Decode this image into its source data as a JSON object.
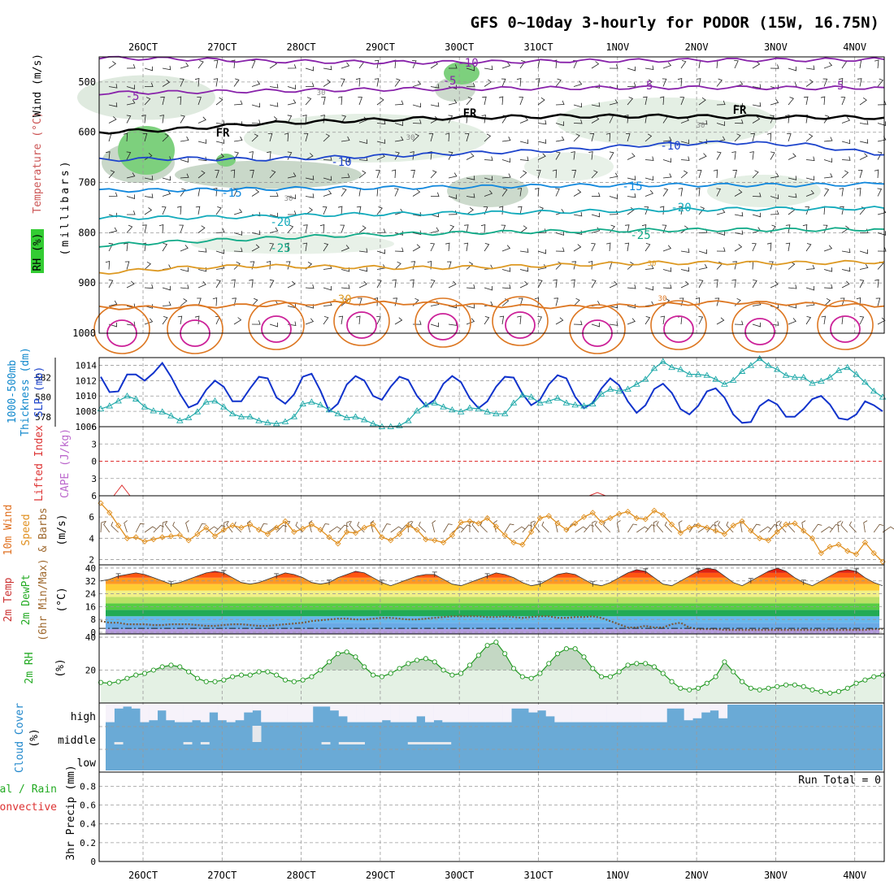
{
  "header": {
    "title": "GFS 0~10day 3-hourly for PODOR (15W, 16.75N)"
  },
  "colors": {
    "slp": "#1133cc",
    "thickness": "#22aaaa",
    "wind_speed": "#e09020",
    "rh_line": "#229922",
    "rh_fill": "#e4f1e4",
    "rh_fill_dark": "#c4d8c4",
    "cloud": "#6aaad6",
    "cloud_bg": "#f6f2fa",
    "lifted_zero": "#e03030"
  },
  "chart_data": [
    {
      "type": "line",
      "name": "time-axis",
      "x_tick_labels": [
        "26OCT",
        "27OCT",
        "28OCT",
        "29OCT",
        "30OCT",
        "31OCT",
        "1NOV",
        "2NOV",
        "3NOV",
        "4NOV"
      ],
      "x_range_days": [
        0,
        10
      ]
    },
    {
      "type": "line",
      "name": "upper-air",
      "ylabels": [
        "RH (%)",
        "Temperature (°C)",
        "Wind (m/s)",
        "(millibars)"
      ],
      "y_ticks": [
        500,
        600,
        700,
        800,
        900,
        1000
      ],
      "ylim": [
        450,
        1000
      ],
      "isotherm_labels": [
        "-10",
        "-5",
        "-5",
        "FR",
        "FR",
        "FR",
        "-5",
        "-5",
        "-10",
        "-10",
        "-15",
        "-15",
        "-20",
        "-20",
        "-25",
        "-25",
        "-30",
        "30",
        "30",
        "30",
        "30",
        "30",
        "30"
      ],
      "isotherms": [
        {
          "value": -10,
          "color": "#8822aa",
          "p": [
            452,
            454,
            458,
            460,
            461,
            460,
            458,
            457,
            456,
            456,
            455
          ]
        },
        {
          "value": -5,
          "color": "#8822aa",
          "p": [
            522,
            520,
            518,
            516,
            514,
            513,
            512,
            511,
            511,
            512,
            511
          ]
        },
        {
          "value": 0,
          "color": "#000000",
          "p": [
            600,
            594,
            583,
            578,
            573,
            570,
            568,
            568,
            569,
            570,
            571
          ]
        },
        {
          "value": 5,
          "color": "#1d44cc",
          "p": [
            655,
            652,
            654,
            650,
            645,
            640,
            635,
            625,
            620,
            625,
            645
          ]
        },
        {
          "value": 10,
          "color": "#1188dd",
          "p": [
            716,
            715,
            713,
            711,
            710,
            708,
            706,
            705,
            705,
            705,
            703
          ]
        },
        {
          "value": 15,
          "color": "#11aabb",
          "p": [
            770,
            770,
            768,
            764,
            762,
            760,
            758,
            755,
            753,
            752,
            751
          ]
        },
        {
          "value": 20,
          "color": "#11aa88",
          "p": [
            825,
            818,
            812,
            806,
            802,
            799,
            797,
            795,
            794,
            794,
            793
          ]
        },
        {
          "value": 25,
          "color": "#dd9922",
          "p": [
            880,
            870,
            866,
            868,
            870,
            868,
            864,
            860,
            860,
            860,
            858
          ]
        },
        {
          "value": 30,
          "color": "#dd7722",
          "p": [
            950,
            948,
            944,
            940,
            940,
            945,
            948,
            944,
            938,
            942,
            946
          ]
        }
      ]
    },
    {
      "type": "line",
      "name": "thickness-slp",
      "ylabels": [
        "1000-500mb",
        "Thickness (dm)",
        "SLP (mb)"
      ],
      "y_ticks_left": [
        578,
        580,
        582
      ],
      "y_ticks_right": [
        1006,
        1008,
        1010,
        1012,
        1014
      ],
      "ylim_slp": [
        1006,
        1015
      ],
      "ylim_thickness": [
        577,
        584
      ],
      "series": [
        {
          "name": "SLP",
          "values": [
            1012.5,
            1010.5,
            1010.6,
            1012.8,
            1012.8,
            1012.0,
            1013.0,
            1014.3,
            1012.5,
            1010.3,
            1008.5,
            1009.0,
            1010.8,
            1012.0,
            1011.2,
            1009.3,
            1009.3,
            1011.0,
            1012.5,
            1012.3,
            1009.8,
            1009.0,
            1010.2,
            1012.5,
            1012.9,
            1010.7,
            1008.0,
            1009.0,
            1011.5,
            1012.6,
            1012.0,
            1010.0,
            1009.5,
            1011.2,
            1012.5,
            1012.1,
            1010.0,
            1008.7,
            1009.5,
            1011.6,
            1012.6,
            1011.8,
            1009.7,
            1008.4,
            1009.3,
            1011.2,
            1012.5,
            1012.4,
            1010.3,
            1008.8,
            1009.5,
            1011.5,
            1012.7,
            1012.3,
            1009.9,
            1008.4,
            1009.1,
            1011.0,
            1012.3,
            1011.4,
            1009.3,
            1007.8,
            1008.8,
            1010.9,
            1011.6,
            1010.4,
            1008.3,
            1007.6,
            1008.7,
            1010.6,
            1011.0,
            1009.8,
            1007.6,
            1006.5,
            1006.6,
            1008.7,
            1009.5,
            1008.9,
            1007.3,
            1007.3,
            1008.3,
            1009.6,
            1010.0,
            1008.9,
            1007.1,
            1006.9,
            1007.6,
            1009.3,
            1008.8,
            1008.0
          ]
        },
        {
          "name": "Thickness",
          "values": [
            578.8,
            579.1,
            579.6,
            580.1,
            579.8,
            579.0,
            578.6,
            578.5,
            578.1,
            577.6,
            577.9,
            578.5,
            579.5,
            579.6,
            579.0,
            578.3,
            578.0,
            578.0,
            577.6,
            577.4,
            577.3,
            577.5,
            578.0,
            579.3,
            579.5,
            579.2,
            578.7,
            578.3,
            577.9,
            578.0,
            577.7,
            577.3,
            577.0,
            577.0,
            577.1,
            577.6,
            578.6,
            579.2,
            579.4,
            579.0,
            578.7,
            578.5,
            578.9,
            578.8,
            578.5,
            578.3,
            578.3,
            579.4,
            580.2,
            580.0,
            579.4,
            579.6,
            579.9,
            579.4,
            579.2,
            579.1,
            579.3,
            580.3,
            580.8,
            580.6,
            580.8,
            581.3,
            581.8,
            582.9,
            583.6,
            583.0,
            582.8,
            582.3,
            582.3,
            582.2,
            581.8,
            581.3,
            581.7,
            582.6,
            583.2,
            583.9,
            583.2,
            582.8,
            582.2,
            582.0,
            582.0,
            581.4,
            581.6,
            582.0,
            582.7,
            583.0,
            582.3,
            581.5,
            580.6,
            580.0
          ]
        }
      ]
    },
    {
      "type": "line",
      "name": "lifted-cape",
      "ylabels": [
        "Lifted Index",
        "CAPE (J/kg)"
      ],
      "y_tick_labels": [
        "-6",
        "-3",
        "0",
        "3",
        "6"
      ],
      "ylim": [
        -6,
        6
      ],
      "reference_line": 0
    },
    {
      "type": "line",
      "name": "wind-10m",
      "ylabels": [
        "10m Wind",
        "Speed",
        "& Barbs",
        "(m/s)"
      ],
      "y_ticks": [
        2,
        4,
        6
      ],
      "ylim": [
        1.5,
        8
      ],
      "series": [
        {
          "name": "Speed",
          "values": [
            7.3,
            6.4,
            5.2,
            4.0,
            4.1,
            3.7,
            3.9,
            4.1,
            4.2,
            4.3,
            3.8,
            4.4,
            5.0,
            4.2,
            4.8,
            5.2,
            5.0,
            5.3,
            4.8,
            4.4,
            5.0,
            5.6,
            4.6,
            4.9,
            5.3,
            4.8,
            4.1,
            3.5,
            4.6,
            4.5,
            5.0,
            5.3,
            4.1,
            3.8,
            4.4,
            5.2,
            4.8,
            3.9,
            3.8,
            3.6,
            4.3,
            5.5,
            5.6,
            5.4,
            5.9,
            5.1,
            4.3,
            3.6,
            3.4,
            4.6,
            5.9,
            6.1,
            5.4,
            4.8,
            5.4,
            6.0,
            6.4,
            5.5,
            5.9,
            6.3,
            6.5,
            5.9,
            5.8,
            6.6,
            6.2,
            5.3,
            4.5,
            5.0,
            5.2,
            5.0,
            4.7,
            4.4,
            5.2,
            5.6,
            4.7,
            4.0,
            3.8,
            4.6,
            5.3,
            5.4,
            4.7,
            4.0,
            2.6,
            3.2,
            3.4,
            2.8,
            2.5,
            3.6,
            2.6,
            1.8
          ]
        }
      ]
    },
    {
      "type": "area",
      "name": "temperature-2m",
      "ylabels": [
        "2m Temp",
        "2m DewPt",
        "(6hr Min/Max)",
        "(°C)"
      ],
      "y_ticks": [
        0,
        8,
        16,
        24,
        32,
        40
      ],
      "ylim": [
        -1,
        42
      ],
      "series": [
        {
          "name": "Temp",
          "values": [
            32,
            33,
            35,
            36,
            37,
            36,
            34,
            32,
            30,
            31,
            33,
            35,
            37,
            38,
            37,
            34,
            31,
            30,
            31,
            33,
            35,
            37,
            36,
            34,
            31,
            30,
            31,
            34,
            36,
            38,
            37,
            34,
            31,
            29,
            31,
            33,
            35,
            36,
            36,
            33,
            30,
            29,
            31,
            33,
            35,
            37,
            36,
            34,
            31,
            29,
            30,
            33,
            36,
            37,
            36,
            33,
            30,
            29,
            31,
            34,
            37,
            39,
            38,
            34,
            30,
            29,
            32,
            35,
            38,
            40,
            39,
            35,
            31,
            29,
            32,
            35,
            38,
            40,
            38,
            34,
            31,
            29,
            32,
            35,
            38,
            39,
            38,
            34,
            31,
            29
          ]
        },
        {
          "name": "DewPt",
          "values": [
            7,
            6,
            6,
            5,
            5,
            5,
            4.5,
            4.5,
            5,
            5,
            5,
            4.5,
            4,
            4,
            4.5,
            5,
            5,
            4.5,
            4,
            4,
            4.5,
            5,
            5.5,
            6,
            7,
            7.5,
            8,
            8.5,
            8.5,
            8,
            8,
            8.5,
            9,
            9,
            8.5,
            8,
            8,
            8.5,
            9,
            9.5,
            10,
            10,
            10,
            10,
            9.5,
            9.5,
            10,
            9.5,
            9,
            9.5,
            10,
            10,
            9,
            9,
            9.5,
            9.5,
            10,
            9,
            7,
            5,
            3,
            3,
            4,
            3,
            3,
            5,
            6,
            3,
            2,
            2,
            2,
            1.5,
            1.5,
            1.5,
            1.5,
            1.5,
            1.5,
            1.5,
            1.5,
            1.5,
            1.5,
            1.5,
            1.5,
            1.5,
            1.5,
            1.5,
            1.5,
            1.5,
            2,
            2
          ]
        }
      ]
    },
    {
      "type": "area",
      "name": "rh-2m",
      "ylabels": [
        "2m RH",
        "(%)"
      ],
      "y_ticks": [
        20,
        40
      ],
      "ylim": [
        0,
        42
      ],
      "series": [
        {
          "name": "RH",
          "values": [
            12.5,
            12,
            13,
            15,
            17,
            18,
            20,
            22,
            23,
            22,
            19,
            15,
            13,
            13,
            14,
            16,
            17,
            17,
            19,
            19,
            17,
            14,
            13,
            14,
            16,
            20,
            25,
            30,
            31,
            28,
            22,
            17,
            16,
            18,
            21,
            24,
            26,
            27,
            25,
            20,
            17,
            18,
            23,
            29,
            35,
            37,
            30,
            21,
            16,
            15,
            18,
            24,
            30,
            33,
            33,
            28,
            21,
            16,
            16,
            19,
            23,
            24,
            24,
            22,
            18,
            13,
            9,
            8,
            9,
            12,
            16,
            25,
            19,
            13,
            9,
            8,
            9,
            10,
            11,
            11,
            10,
            8,
            7,
            6,
            7,
            9,
            12,
            14,
            16,
            17
          ]
        }
      ]
    },
    {
      "type": "bar",
      "name": "cloud-cover",
      "ylabels": [
        "Cloud Cover",
        "(%)"
      ],
      "y_tick_labels": [
        "high",
        "middle",
        "low"
      ],
      "series": [
        {
          "name": "high",
          "values": [
            10,
            80,
            90,
            80,
            10,
            20,
            70,
            20,
            10,
            10,
            20,
            10,
            60,
            20,
            10,
            20,
            60,
            70,
            10,
            10,
            10,
            10,
            10,
            10,
            90,
            90,
            70,
            40,
            10,
            10,
            10,
            10,
            20,
            10,
            10,
            10,
            40,
            10,
            20,
            10,
            10,
            10,
            10,
            10,
            10,
            10,
            10,
            80,
            80,
            60,
            70,
            40,
            10,
            10,
            10,
            10,
            10,
            10,
            10,
            10,
            10,
            10,
            10,
            10,
            10,
            80,
            80,
            20,
            30,
            60,
            70,
            30,
            100,
            100,
            100,
            100,
            100,
            100,
            100,
            100,
            100,
            100,
            100,
            100,
            100,
            100,
            100,
            100,
            100,
            100
          ]
        },
        {
          "name": "middle",
          "values": [
            0,
            10,
            0,
            0,
            0,
            0,
            0,
            0,
            0,
            30,
            0,
            10,
            0,
            0,
            0,
            0,
            0,
            90,
            0,
            0,
            0,
            0,
            0,
            0,
            0,
            10,
            0,
            10,
            10,
            10,
            0,
            0,
            0,
            0,
            0,
            10,
            10,
            10,
            10,
            10,
            0,
            0,
            0,
            0,
            0,
            0,
            0,
            0,
            0,
            0,
            0,
            0,
            0,
            0,
            0,
            0,
            0,
            0,
            0,
            0,
            0,
            0,
            0,
            0,
            0,
            0,
            0,
            0,
            0,
            0,
            0,
            0,
            0,
            0,
            0,
            0,
            0,
            0,
            0,
            0,
            0,
            0,
            0,
            0,
            0,
            0,
            0,
            0,
            0,
            0
          ]
        }
      ]
    },
    {
      "type": "bar",
      "name": "precip-3hr",
      "ylabels": [
        "Total / Rain",
        "Convective",
        "3hr Precip (mm)"
      ],
      "y_tick_labels": [
        "0",
        "0.2",
        "0.4",
        "0.6",
        "0.8"
      ],
      "ylim": [
        0,
        0.95
      ],
      "values": [],
      "annotation": "Run Total = 0"
    }
  ]
}
